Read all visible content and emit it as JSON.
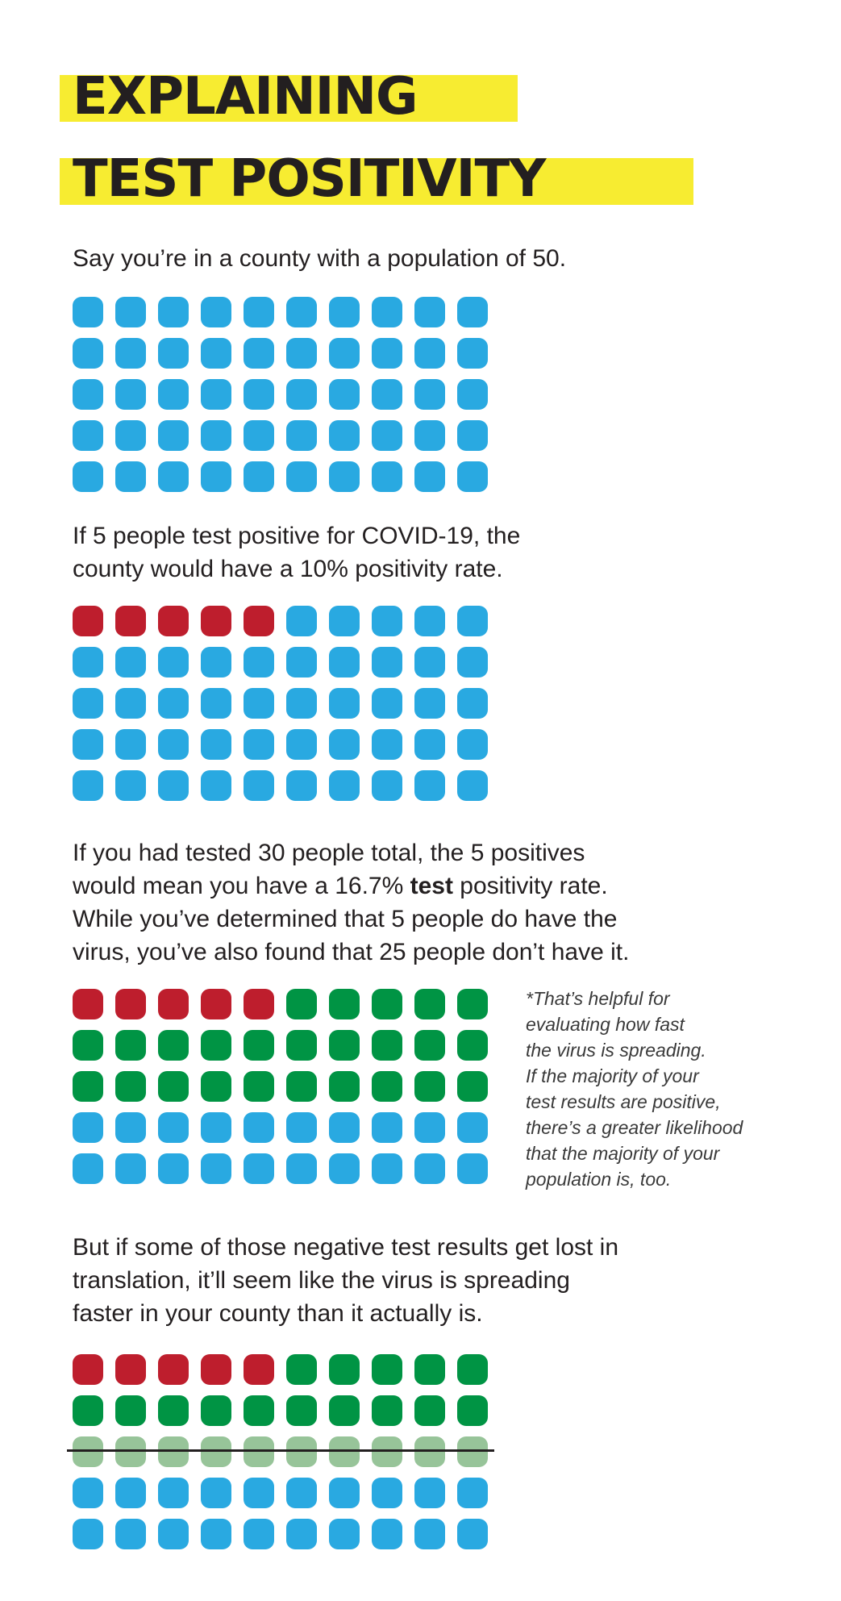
{
  "title": {
    "line1": "EXPLAINING",
    "line2": "TEST POSITIVITY"
  },
  "colors": {
    "highlight": "#f7ec31",
    "untested": "#29a9e1",
    "positive": "#be1e2d",
    "negative": "#009444",
    "lost_negative": "#97c499",
    "text": "#231f20"
  },
  "section1": {
    "text": "Say you’re in a county with a population of 50."
  },
  "section2": {
    "line1": "If 5 people test positive for COVID-19, the",
    "line2": "county would have a 10% positivity rate."
  },
  "section3": {
    "line1": "If you had tested 30 people total, the 5 positives",
    "line2_pre": "would mean you have a 16.7% ",
    "line2_bold": "test",
    "line2_post": " positivity rate.",
    "line3": "While you’ve determined that 5 people do have the",
    "line4": "virus, you’ve also found that 25 people don’t have it."
  },
  "note": {
    "lines": [
      "*That’s helpful for",
      "evaluating how fast",
      "the virus is spreading.",
      "If the majority of your",
      "test results are positive,",
      "there’s a greater likelihood",
      "that the majority of your",
      "population is, too."
    ]
  },
  "section4": {
    "line1": "But if some of those negative test results get lost in",
    "line2": "translation, it’ll seem like the virus is spreading",
    "line3": "faster in your county than it actually is."
  },
  "grids": [
    {
      "name": "population-grid",
      "counts": {
        "positive": 0,
        "negative": 0,
        "lost_negative": 0,
        "untested": 50
      }
    },
    {
      "name": "positive-grid",
      "counts": {
        "positive": 5,
        "negative": 0,
        "lost_negative": 0,
        "untested": 45
      }
    },
    {
      "name": "tested-grid",
      "counts": {
        "positive": 5,
        "negative": 25,
        "lost_negative": 0,
        "untested": 20
      }
    },
    {
      "name": "lost-results-grid",
      "counts": {
        "positive": 5,
        "negative": 15,
        "lost_negative": 10,
        "untested": 20
      }
    }
  ]
}
